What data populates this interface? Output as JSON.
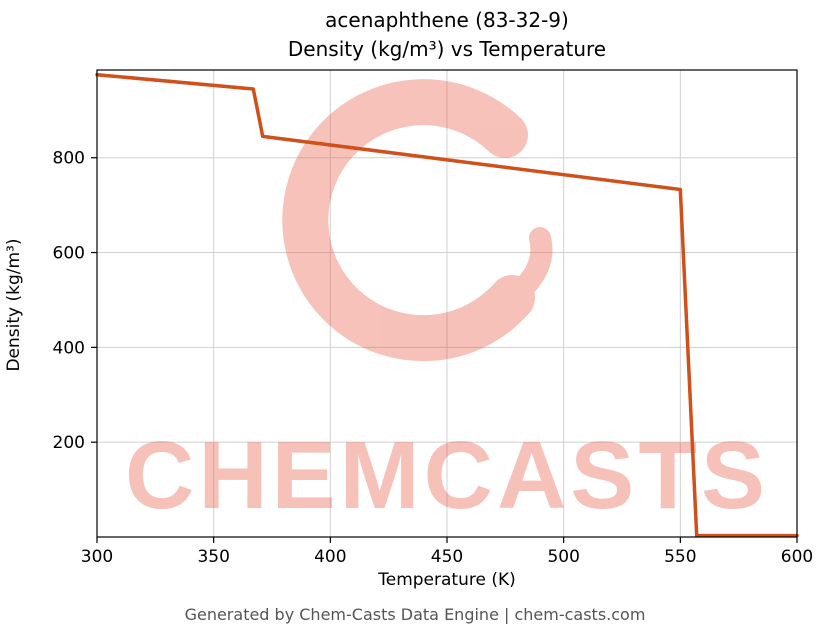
{
  "page": {
    "background": "#ffffff"
  },
  "watermark": {
    "text": "CHEMCASTS",
    "logo": "chemcasts-c-swirl",
    "color": "#e85f46",
    "opacity": 0.38
  },
  "footer": {
    "text": "Generated by Chem-Casts Data Engine | chem-casts.com"
  },
  "chart_data": {
    "type": "line",
    "title": "acenaphthene (83-32-9)",
    "subtitle": "Density (kg/m³) vs Temperature",
    "xlabel": "Temperature (K)",
    "ylabel": "Density (kg/m³)",
    "xlim": [
      300,
      600
    ],
    "ylim": [
      0,
      985
    ],
    "x_ticks": [
      300,
      350,
      400,
      450,
      500,
      550,
      600
    ],
    "y_ticks": [
      200,
      400,
      600,
      800
    ],
    "grid": true,
    "legend": false,
    "line_color": "#d0501b",
    "line_width": 3.5,
    "grid_color": "#d0d0d0",
    "series": [
      {
        "name": "Density",
        "points": [
          [
            300,
            975
          ],
          [
            367,
            945
          ],
          [
            371,
            845
          ],
          [
            550,
            733
          ],
          [
            557,
            3
          ],
          [
            600,
            3
          ]
        ]
      }
    ]
  }
}
